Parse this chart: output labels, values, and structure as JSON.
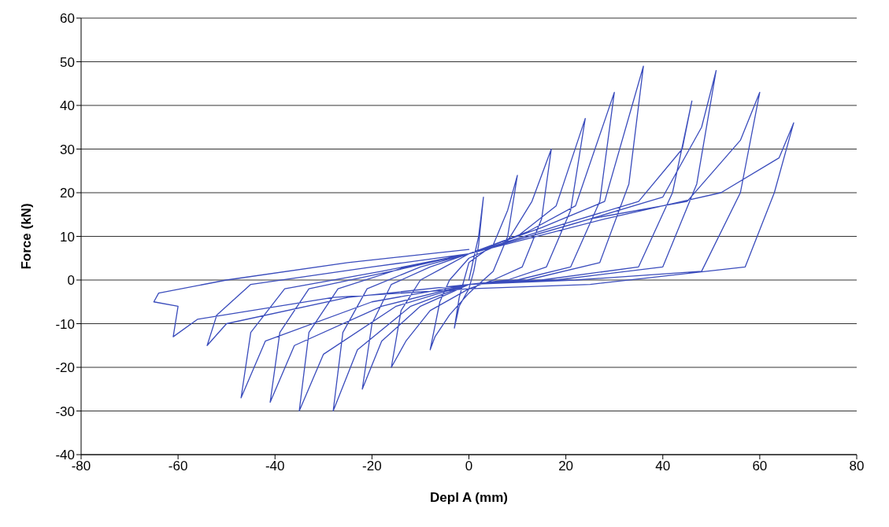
{
  "chart_data": {
    "type": "line",
    "xlabel": "Depl A (mm)",
    "ylabel": "Force (kN)",
    "xlim": [
      -80,
      80
    ],
    "xticks": [
      -80,
      -60,
      -40,
      -20,
      0,
      20,
      40,
      60,
      80
    ],
    "ylim": [
      -40,
      60
    ],
    "yticks": [
      -40,
      -30,
      -20,
      -10,
      0,
      10,
      20,
      30,
      40,
      50,
      60
    ],
    "grid": "y",
    "marker": "none",
    "line_style": "solid",
    "series": [
      {
        "color": "#3a4cbc",
        "x": [
          0,
          2,
          3,
          2,
          1,
          0,
          -2,
          -3,
          -2,
          -1,
          0,
          5,
          8,
          10,
          8,
          5,
          2,
          0,
          -4,
          -7,
          -8,
          -6,
          -4,
          0,
          8,
          13,
          17,
          15,
          11,
          5,
          0,
          -8,
          -13,
          -16,
          -14,
          -10,
          -5,
          0,
          10,
          18,
          24,
          21,
          16,
          8,
          0,
          -10,
          -18,
          -22,
          -20,
          -16,
          -8,
          0,
          12,
          22,
          30,
          27,
          21,
          10,
          0,
          -12,
          -23,
          -28,
          -26,
          -21,
          -10,
          0,
          15,
          28,
          36,
          33,
          27,
          12,
          0,
          -15,
          -30,
          -35,
          -33,
          -27,
          -13,
          0,
          20,
          35,
          44,
          46,
          42,
          35,
          15,
          0,
          -18,
          -36,
          -41,
          -39,
          -33,
          -16,
          0,
          22,
          40,
          48,
          51,
          47,
          40,
          18,
          0,
          -20,
          -42,
          -47,
          -45,
          -38,
          -18,
          0,
          25,
          45,
          56,
          60,
          56,
          48,
          22,
          0,
          -25,
          -50,
          -54,
          -52,
          -45,
          -20,
          0,
          28,
          52,
          64,
          67,
          63,
          57,
          25,
          0,
          -28,
          -56,
          -61,
          -60,
          -65,
          -64,
          -50,
          -25,
          0
        ],
        "values": [
          0,
          10,
          19,
          8,
          2,
          -2,
          -6,
          -11,
          -4,
          0,
          4,
          8,
          16,
          24,
          10,
          2,
          -1,
          -3,
          -8,
          -13,
          -16,
          -5,
          0,
          5,
          9,
          18,
          30,
          14,
          3,
          0,
          -2,
          -7,
          -14,
          -20,
          -7,
          0,
          3,
          6,
          10,
          17,
          37,
          16,
          3,
          0,
          -1,
          -6,
          -14,
          -25,
          -10,
          -1,
          3,
          6,
          11,
          17,
          43,
          18,
          3,
          0,
          -1,
          -6,
          -16,
          -30,
          -12,
          -2,
          3,
          6,
          12,
          18,
          49,
          22,
          4,
          0,
          -1,
          -6,
          -17,
          -30,
          -12,
          -2,
          3,
          6,
          13,
          18,
          30,
          41,
          20,
          3,
          0,
          -1,
          -6,
          -15,
          -28,
          -12,
          -2,
          2,
          6,
          13,
          19,
          35,
          48,
          22,
          3,
          0,
          -1,
          -5,
          -14,
          -27,
          -12,
          -2,
          2,
          6,
          14,
          18,
          32,
          43,
          20,
          2,
          0,
          -1,
          -4,
          -10,
          -15,
          -8,
          -1,
          3,
          6,
          14,
          20,
          28,
          36,
          20,
          3,
          -1,
          -2,
          -4,
          -9,
          -13,
          -6,
          -5,
          -3,
          0,
          4,
          7
        ]
      }
    ]
  }
}
